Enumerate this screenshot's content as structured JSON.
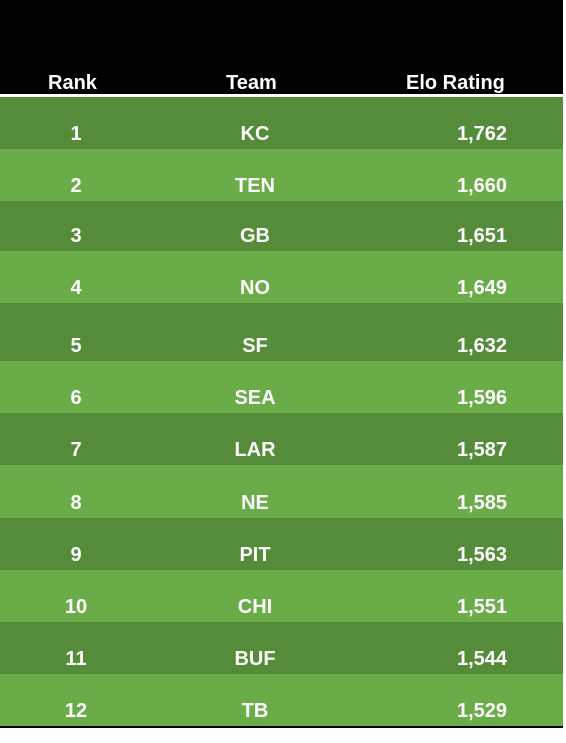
{
  "chart_data": {
    "type": "table",
    "columns": [
      "Rank",
      "Team",
      "Elo Rating"
    ],
    "rows": [
      {
        "rank": "1",
        "team": "KC",
        "elo": "1,762"
      },
      {
        "rank": "2",
        "team": "TEN",
        "elo": "1,660"
      },
      {
        "rank": "3",
        "team": "GB",
        "elo": "1,651"
      },
      {
        "rank": "4",
        "team": "NO",
        "elo": "1,649"
      },
      {
        "rank": "5",
        "team": "SF",
        "elo": "1,632"
      },
      {
        "rank": "6",
        "team": "SEA",
        "elo": "1,596"
      },
      {
        "rank": "7",
        "team": "LAR",
        "elo": "1,587"
      },
      {
        "rank": "8",
        "team": "NE",
        "elo": "1,585"
      },
      {
        "rank": "9",
        "team": "PIT",
        "elo": "1,563"
      },
      {
        "rank": "10",
        "team": "CHI",
        "elo": "1,551"
      },
      {
        "rank": "11",
        "team": "BUF",
        "elo": "1,544"
      },
      {
        "rank": "12",
        "team": "TB",
        "elo": "1,529"
      }
    ]
  },
  "colors": {
    "header_bg": "#000000",
    "row_dark": "#548c39",
    "row_light": "#6aac48",
    "text": "#ffffff"
  }
}
